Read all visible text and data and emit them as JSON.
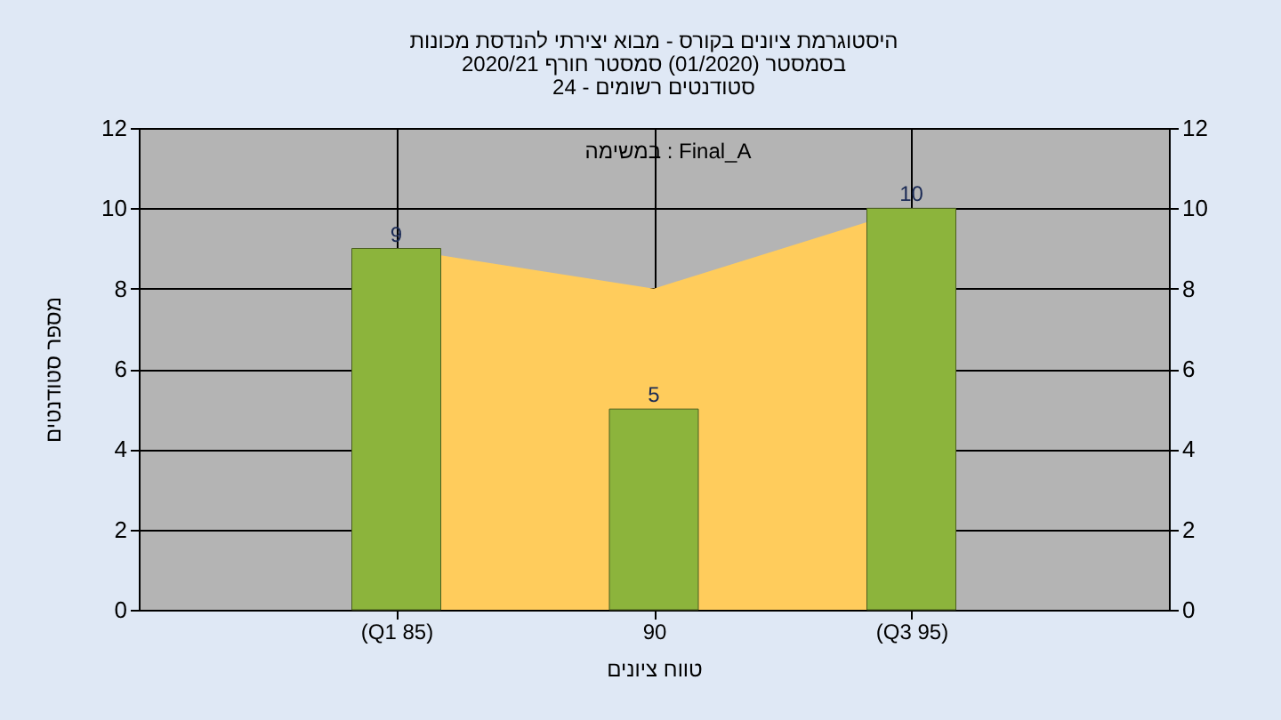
{
  "chart_data": {
    "type": "bar",
    "title": [
      "היסטוגרמת ציונים בקורס - מבוא יצירתי להנדסת מכונות",
      "בסמסטר (01/2020) סמסטר חורף 2020/21",
      "סטודנטים רשומים - 24"
    ],
    "xlabel": "טווח ציונים",
    "ylabel": "מספר סטודנטים",
    "annotations": [
      "במשימה : Final_A"
    ],
    "categories": [
      "(Q1 85)",
      "90",
      "(Q3 95)"
    ],
    "series": [
      {
        "type": "area",
        "color": "#ffcc5c",
        "values": [
          9,
          8,
          10
        ]
      },
      {
        "color": "#8cb43c",
        "values": [
          9,
          5,
          10
        ],
        "data_labels": true
      }
    ],
    "ylim": [
      0,
      12
    ],
    "yticks": [
      0,
      2,
      4,
      6,
      8,
      10,
      12
    ],
    "y2lim": [
      0,
      12
    ],
    "y2ticks": [
      0,
      2,
      4,
      6,
      8,
      10,
      12
    ],
    "grid": true
  }
}
